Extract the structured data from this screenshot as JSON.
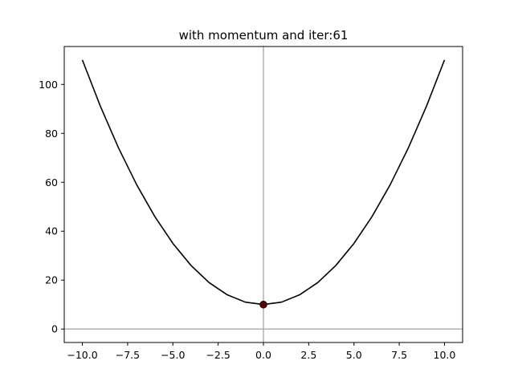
{
  "chart_data": {
    "type": "line",
    "title": "with momentum and iter:61",
    "xlabel": "",
    "ylabel": "",
    "xlim": [
      -11.0,
      11.0
    ],
    "ylim": [
      -5.5,
      115.5
    ],
    "xticks": [
      -10.0,
      -7.5,
      -5.0,
      -2.5,
      0.0,
      2.5,
      5.0,
      7.5,
      10.0
    ],
    "xtick_labels": [
      "−10.0",
      "−7.5",
      "−5.0",
      "−2.5",
      "0.0",
      "2.5",
      "5.0",
      "7.5",
      "10.0"
    ],
    "yticks": [
      0,
      20,
      40,
      60,
      80,
      100
    ],
    "ytick_labels": [
      "0",
      "20",
      "40",
      "60",
      "80",
      "100"
    ],
    "grid": false,
    "reference_lines": {
      "x": 0,
      "y": 0,
      "color": "#b0b0b0"
    },
    "series": [
      {
        "x": [
          -10,
          -9,
          -8,
          -7,
          -6,
          -5,
          -4,
          -3,
          -2,
          -1,
          0,
          1,
          2,
          3,
          4,
          5,
          6,
          7,
          8,
          9,
          10
        ],
        "y": [
          110,
          91,
          74,
          59,
          46,
          35,
          26,
          19,
          14,
          11,
          10,
          11,
          14,
          19,
          26,
          35,
          46,
          59,
          74,
          91,
          110
        ],
        "color": "#000000"
      }
    ],
    "points": [
      {
        "x": 0.0,
        "y": 10.0,
        "color": "#5a0000"
      }
    ]
  }
}
